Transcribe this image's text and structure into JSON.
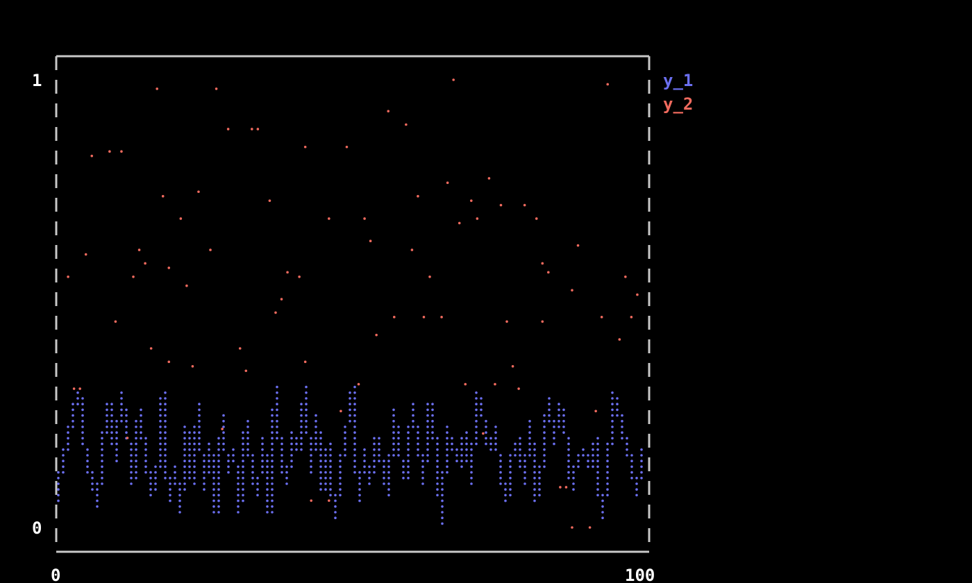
{
  "chart_data": {
    "type": "scatter",
    "xlim": [
      0,
      100
    ],
    "ylim": [
      0,
      1
    ],
    "x_tick_labels": [
      "0",
      "100"
    ],
    "y_tick_labels": [
      "0",
      "1"
    ],
    "legend_placement": "right",
    "grid": false,
    "colors": {
      "background": "#000000",
      "frame": "#c8c8c8",
      "y_1": "#6b6ff0",
      "y_2": "#f06a5e",
      "overlap": "#e060d8"
    },
    "series": [
      {
        "name": "y_1",
        "style": "line",
        "x": [
          0,
          1,
          2,
          3,
          4,
          5,
          6,
          7,
          8,
          9,
          10,
          11,
          12,
          13,
          14,
          15,
          16,
          17,
          18,
          19,
          20,
          21,
          22,
          23,
          24,
          25,
          26,
          27,
          28,
          29,
          30,
          31,
          32,
          33,
          34,
          35,
          36,
          37,
          38,
          39,
          40,
          41,
          42,
          43,
          44,
          45,
          46,
          47,
          48,
          49,
          50,
          51,
          52,
          53,
          54,
          55,
          56,
          57,
          58,
          59,
          60,
          61,
          62,
          63,
          64,
          65,
          66,
          67,
          68,
          69,
          70,
          71,
          72,
          73,
          74,
          75,
          76,
          77,
          78,
          79,
          80,
          81,
          82,
          83,
          84,
          85,
          86,
          87,
          88,
          89,
          90,
          91,
          92,
          93,
          94,
          95,
          96,
          97,
          98,
          99
        ],
        "y": [
          0.06,
          0.14,
          0.2,
          0.27,
          0.3,
          0.16,
          0.1,
          0.05,
          0.2,
          0.28,
          0.15,
          0.3,
          0.22,
          0.1,
          0.26,
          0.17,
          0.07,
          0.11,
          0.3,
          0.06,
          0.14,
          0.04,
          0.22,
          0.1,
          0.27,
          0.08,
          0.19,
          0.03,
          0.25,
          0.12,
          0.18,
          0.04,
          0.24,
          0.13,
          0.07,
          0.2,
          0.03,
          0.31,
          0.14,
          0.1,
          0.21,
          0.17,
          0.31,
          0.12,
          0.25,
          0.08,
          0.19,
          0.02,
          0.13,
          0.22,
          0.31,
          0.06,
          0.17,
          0.1,
          0.2,
          0.14,
          0.07,
          0.26,
          0.16,
          0.11,
          0.27,
          0.2,
          0.1,
          0.28,
          0.19,
          0.01,
          0.22,
          0.18,
          0.14,
          0.21,
          0.1,
          0.3,
          0.25,
          0.17,
          0.22,
          0.12,
          0.06,
          0.16,
          0.2,
          0.1,
          0.24,
          0.06,
          0.14,
          0.29,
          0.19,
          0.27,
          0.21,
          0.09,
          0.16,
          0.18,
          0.13,
          0.2,
          0.02,
          0.11,
          0.3,
          0.25,
          0.19,
          0.15,
          0.07,
          0.18
        ]
      },
      {
        "name": "y_2",
        "style": "scatter",
        "x": [
          2,
          3,
          4,
          5,
          6,
          9,
          10,
          11,
          12,
          13,
          14,
          15,
          16,
          17,
          18,
          19,
          19,
          21,
          22,
          23,
          24,
          26,
          27,
          28,
          29,
          31,
          32,
          33,
          34,
          36,
          37,
          38,
          39,
          41,
          42,
          42,
          43,
          46,
          46,
          48,
          49,
          51,
          52,
          53,
          54,
          56,
          57,
          59,
          60,
          61,
          62,
          63,
          65,
          66,
          67,
          68,
          69,
          70,
          71,
          72,
          73,
          74,
          75,
          76,
          77,
          78,
          79,
          81,
          82,
          82,
          83,
          85,
          86,
          87,
          87,
          88,
          90,
          91,
          92,
          93,
          95,
          96,
          97,
          98
        ],
        "y": [
          0.56,
          0.31,
          0.31,
          0.61,
          0.83,
          0.84,
          0.46,
          0.84,
          0.2,
          0.56,
          0.62,
          0.59,
          0.4,
          0.98,
          0.74,
          0.58,
          0.37,
          0.69,
          0.54,
          0.36,
          0.75,
          0.62,
          0.98,
          0.22,
          0.89,
          0.4,
          0.35,
          0.89,
          0.89,
          0.73,
          0.48,
          0.51,
          0.57,
          0.56,
          0.37,
          0.85,
          0.06,
          0.69,
          0.06,
          0.26,
          0.85,
          0.32,
          0.69,
          0.64,
          0.43,
          0.93,
          0.47,
          0.9,
          0.62,
          0.74,
          0.47,
          0.56,
          0.47,
          0.77,
          1.0,
          0.68,
          0.32,
          0.73,
          0.69,
          0.21,
          0.78,
          0.32,
          0.72,
          0.46,
          0.36,
          0.31,
          0.72,
          0.69,
          0.59,
          0.46,
          0.57,
          0.09,
          0.09,
          0.53,
          0.0,
          0.63,
          0.0,
          0.26,
          0.47,
          0.99,
          0.42,
          0.56,
          0.47,
          0.52
        ]
      }
    ]
  }
}
